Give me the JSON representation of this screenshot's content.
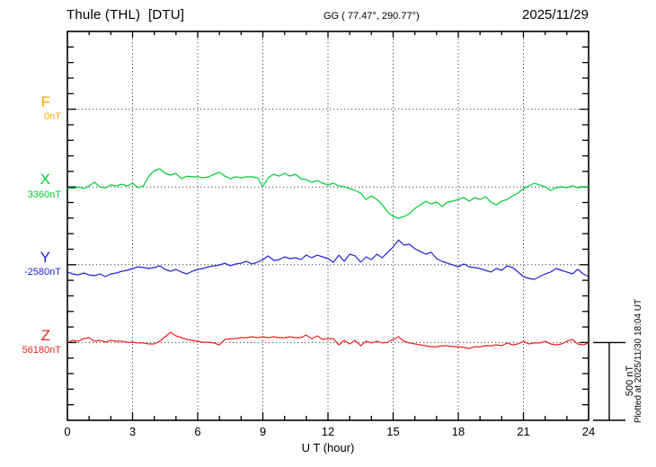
{
  "header": {
    "title": "Thule (THL)  [DTU]",
    "coords": "GG ( 77.47°, 290.77°)",
    "date": "2025/11/29"
  },
  "axes": {
    "x_label": "U T (hour)",
    "x_tick_labels": [
      "0",
      "3",
      "6",
      "9",
      "12",
      "15",
      "18",
      "21",
      "24"
    ],
    "scale_bar_label": "500 nT"
  },
  "footer": {
    "note": "Plotted at 2025/11/30 18:04 UT"
  },
  "channels": [
    {
      "label": "F",
      "value_label": "0nT",
      "color": "#FFA500"
    },
    {
      "label": "X",
      "value_label": "3360nT",
      "color": "#00CC33"
    },
    {
      "label": "Y",
      "value_label": "-2580nT",
      "color": "#2222DD"
    },
    {
      "label": "Z",
      "value_label": "56180nT",
      "color": "#EE2222"
    }
  ],
  "chart_data": {
    "type": "line",
    "title": "Thule (THL) [DTU] magnetogram 2025/11/29",
    "xlabel": "U T (hour)",
    "xlim": [
      0,
      24
    ],
    "x_step_hours": 0.25,
    "x_gridlines_hours": [
      3,
      6,
      9,
      12,
      15,
      18,
      21
    ],
    "grid": "dotted",
    "nT_per_division": 100,
    "scale_bar_nT": 500,
    "series": [
      {
        "name": "F",
        "color": "#FFA500",
        "baseline_nT": 0,
        "values": []
      },
      {
        "name": "X",
        "color": "#00CC33",
        "baseline_nT": 3360,
        "values": [
          3355,
          3350,
          3360,
          3350,
          3367,
          3390,
          3360,
          3355,
          3373,
          3367,
          3378,
          3367,
          3384,
          3355,
          3367,
          3430,
          3465,
          3477,
          3448,
          3436,
          3448,
          3413,
          3430,
          3425,
          3425,
          3419,
          3425,
          3442,
          3454,
          3430,
          3413,
          3425,
          3419,
          3425,
          3425,
          3419,
          3361,
          3419,
          3442,
          3430,
          3448,
          3430,
          3442,
          3413,
          3407,
          3390,
          3402,
          3384,
          3373,
          3384,
          3367,
          3361,
          3350,
          3338,
          3321,
          3280,
          3303,
          3280,
          3245,
          3199,
          3170,
          3159,
          3170,
          3188,
          3222,
          3245,
          3269,
          3251,
          3263,
          3234,
          3263,
          3269,
          3280,
          3292,
          3269,
          3292,
          3280,
          3297,
          3263,
          3245,
          3269,
          3280,
          3303,
          3321,
          3350,
          3367,
          3384,
          3373,
          3361,
          3338,
          3355,
          3361,
          3355,
          3367,
          3355,
          3361,
          3361
        ]
      },
      {
        "name": "Y",
        "color": "#2222DD",
        "baseline_nT": -2580,
        "values": [
          -2627,
          -2639,
          -2645,
          -2633,
          -2645,
          -2650,
          -2639,
          -2656,
          -2639,
          -2633,
          -2622,
          -2616,
          -2604,
          -2593,
          -2598,
          -2604,
          -2598,
          -2587,
          -2610,
          -2622,
          -2610,
          -2627,
          -2639,
          -2622,
          -2610,
          -2604,
          -2593,
          -2587,
          -2581,
          -2570,
          -2587,
          -2575,
          -2570,
          -2558,
          -2575,
          -2564,
          -2547,
          -2523,
          -2552,
          -2547,
          -2529,
          -2541,
          -2535,
          -2547,
          -2518,
          -2535,
          -2518,
          -2529,
          -2541,
          -2564,
          -2518,
          -2558,
          -2512,
          -2523,
          -2564,
          -2529,
          -2547,
          -2512,
          -2535,
          -2500,
          -2466,
          -2420,
          -2454,
          -2448,
          -2477,
          -2494,
          -2512,
          -2500,
          -2541,
          -2558,
          -2570,
          -2581,
          -2593,
          -2575,
          -2593,
          -2598,
          -2604,
          -2616,
          -2627,
          -2604,
          -2616,
          -2587,
          -2598,
          -2627,
          -2656,
          -2668,
          -2674,
          -2656,
          -2639,
          -2627,
          -2604,
          -2616,
          -2627,
          -2639,
          -2610,
          -2639,
          -2656
        ]
      },
      {
        "name": "Z",
        "color": "#EE2222",
        "baseline_nT": 56180,
        "values": [
          56182,
          56194,
          56188,
          56205,
          56211,
          56188,
          56194,
          56182,
          56194,
          56188,
          56188,
          56182,
          56182,
          56177,
          56177,
          56171,
          56171,
          56188,
          56217,
          56246,
          56223,
          56211,
          56200,
          56194,
          56188,
          56182,
          56182,
          56177,
          56165,
          56200,
          56205,
          56205,
          56211,
          56211,
          56217,
          56211,
          56217,
          56211,
          56217,
          56211,
          56211,
          56217,
          56211,
          56211,
          56228,
          56205,
          56223,
          56200,
          56205,
          56205,
          56165,
          56194,
          56171,
          56194,
          56159,
          56188,
          56177,
          56188,
          56177,
          56182,
          56200,
          56217,
          56188,
          56177,
          56171,
          56165,
          56159,
          56153,
          56153,
          56159,
          56159,
          56153,
          56153,
          56148,
          56142,
          56153,
          56153,
          56159,
          56159,
          56165,
          56159,
          56177,
          56165,
          56171,
          56188,
          56171,
          56177,
          56177,
          56188,
          56171,
          56165,
          56171,
          56188,
          56200,
          56171,
          56165,
          56177
        ]
      }
    ]
  }
}
